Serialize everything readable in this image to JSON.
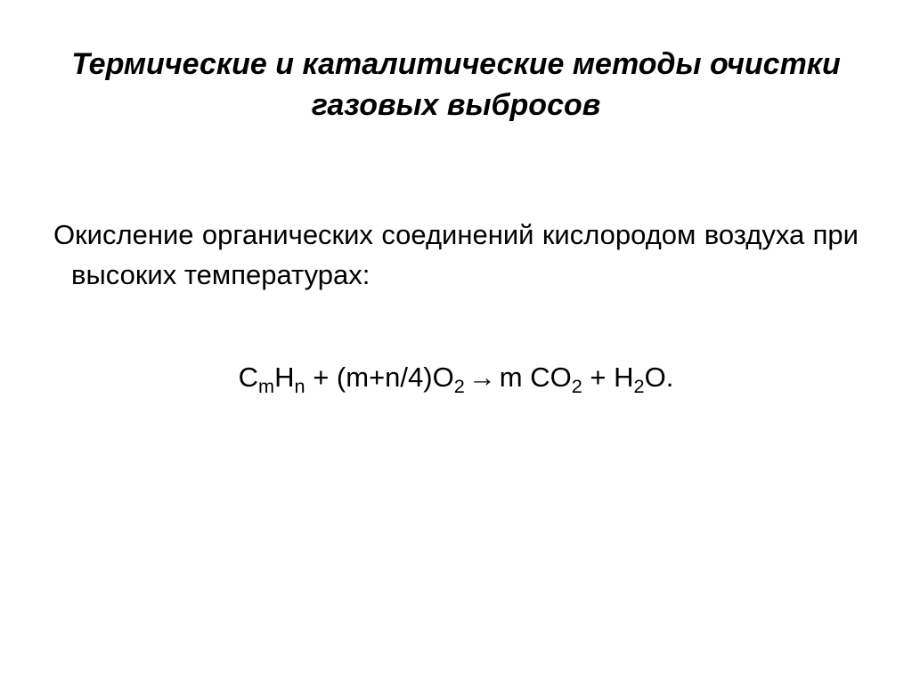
{
  "slide": {
    "title": "Термические и каталитические методы очистки газовых выбросов",
    "title_fontsize": 34,
    "title_fontweight": "bold",
    "title_fontstyle": "italic",
    "body_text": "Окисление органических соединений кислородом воздуха при высоких температурах:",
    "body_fontsize": 31,
    "equation": {
      "lhs_species1_base": "C",
      "lhs_species1_sub1": "m",
      "lhs_species1_base2": "H",
      "lhs_species1_sub2": "n",
      "plus1": " + ",
      "coeff2": "(m+n/4)",
      "lhs_species2_base": "O",
      "lhs_species2_sub": "2",
      "arrow": " → ",
      "rhs_coeff1": "m ",
      "rhs_species1_base": "CO",
      "rhs_species1_sub": "2",
      "plus2": " +  ",
      "rhs_species2_base": "H",
      "rhs_species2_sub": "2",
      "rhs_species2_base2": "O",
      "period": "."
    },
    "equation_fontsize": 31,
    "text_color": "#000000",
    "background_color": "#ffffff"
  }
}
